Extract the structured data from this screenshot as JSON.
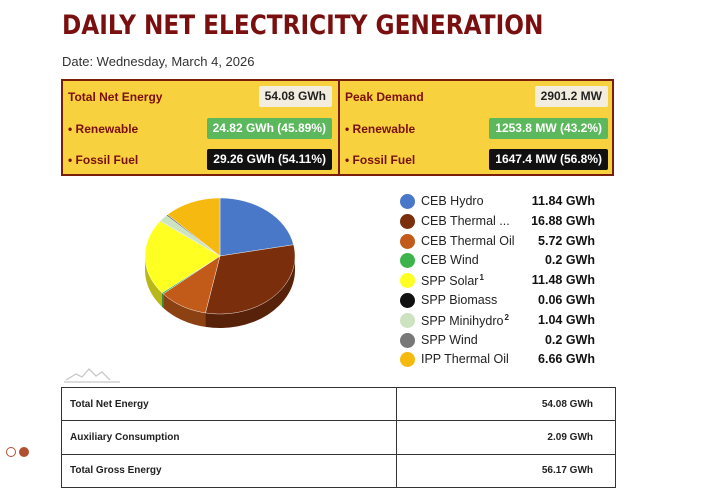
{
  "header": {
    "title": "DAILY NET ELECTRICITY GENERATION",
    "date": "Date: Wednesday, March 4, 2026"
  },
  "summary": {
    "left": {
      "total_label": "Total Net Energy",
      "total_value": "54.08 GWh",
      "renewable_label": "• Renewable",
      "renewable_value": "24.82 GWh (45.89%)",
      "fossil_label": "• Fossil Fuel",
      "fossil_value": "29.26 GWh (54.11%)"
    },
    "right": {
      "total_label": "Peak Demand",
      "total_value": "2901.2 MW",
      "renewable_label": "• Renewable",
      "renewable_value": "1253.8 MW (43.2%)",
      "fossil_label": "• Fossil Fuel",
      "fossil_value": "1647.4 MW (56.8%)"
    },
    "colors": {
      "panel": "#f7d23e",
      "border": "#7a1e0a",
      "green": "#5cb85c",
      "black": "#111111"
    }
  },
  "chart_data": {
    "type": "pie",
    "unit": "GWh",
    "series": [
      {
        "name": "CEB Hydro",
        "value": 11.84,
        "display": "11.84 GWh",
        "color": "#4a78c8",
        "note": ""
      },
      {
        "name": "CEB Thermal ...",
        "value": 16.88,
        "display": "16.88 GWh",
        "color": "#7a2e0c",
        "note": ""
      },
      {
        "name": "CEB Thermal Oil",
        "value": 5.72,
        "display": "5.72 GWh",
        "color": "#c25a1a",
        "note": ""
      },
      {
        "name": "CEB Wind",
        "value": 0.2,
        "display": "0.2 GWh",
        "color": "#3cb44b",
        "note": ""
      },
      {
        "name": "SPP Solar",
        "value": 11.48,
        "display": "11.48 GWh",
        "color": "#ffff22",
        "note": "1"
      },
      {
        "name": "SPP Biomass",
        "value": 0.06,
        "display": "0.06 GWh",
        "color": "#111111",
        "note": ""
      },
      {
        "name": "SPP Minihydro",
        "value": 1.04,
        "display": "1.04 GWh",
        "color": "#cce3c0",
        "note": "2"
      },
      {
        "name": "SPP Wind",
        "value": 0.2,
        "display": "0.2 GWh",
        "color": "#777777",
        "note": ""
      },
      {
        "name": "IPP Thermal Oil",
        "value": 6.66,
        "display": "6.66 GWh",
        "color": "#f5b90f",
        "note": ""
      }
    ],
    "legend_position": "right"
  },
  "totals": [
    {
      "label": "Total Net Energy",
      "value": "54.08 GWh"
    },
    {
      "label": "Auxiliary Consumption",
      "value": "2.09 GWh"
    },
    {
      "label": "Total Gross Energy",
      "value": "56.17 GWh"
    }
  ]
}
